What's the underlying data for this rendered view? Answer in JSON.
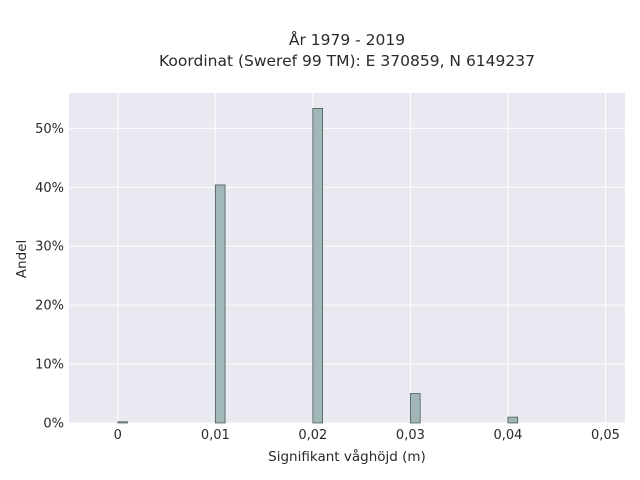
{
  "chart_data": {
    "type": "bar",
    "title": "År 1979 - 2019",
    "subtitle": "Koordinat (Sweref 99 TM): E 370859, N 6149237",
    "xlabel": "Signifikant våghöjd (m)",
    "ylabel": "Andel",
    "x_ticks": [
      "0",
      "0,01",
      "0,02",
      "0,03",
      "0,04",
      "0,05"
    ],
    "y_ticks": [
      "0%",
      "10%",
      "20%",
      "30%",
      "40%",
      "50%"
    ],
    "xlim": [
      -0.005,
      0.052
    ],
    "ylim": [
      0,
      56
    ],
    "bar_width": 0.001,
    "bars": [
      {
        "x": 0.0,
        "value": 0.2
      },
      {
        "x": 0.01,
        "value": 40.4
      },
      {
        "x": 0.02,
        "value": 53.4
      },
      {
        "x": 0.03,
        "value": 5.0
      },
      {
        "x": 0.04,
        "value": 1.0
      }
    ],
    "grid": true,
    "bar_color": "#a2b8b8",
    "bar_edge_color": "#3e4a4a",
    "plot_background": "#e9e9f1"
  }
}
